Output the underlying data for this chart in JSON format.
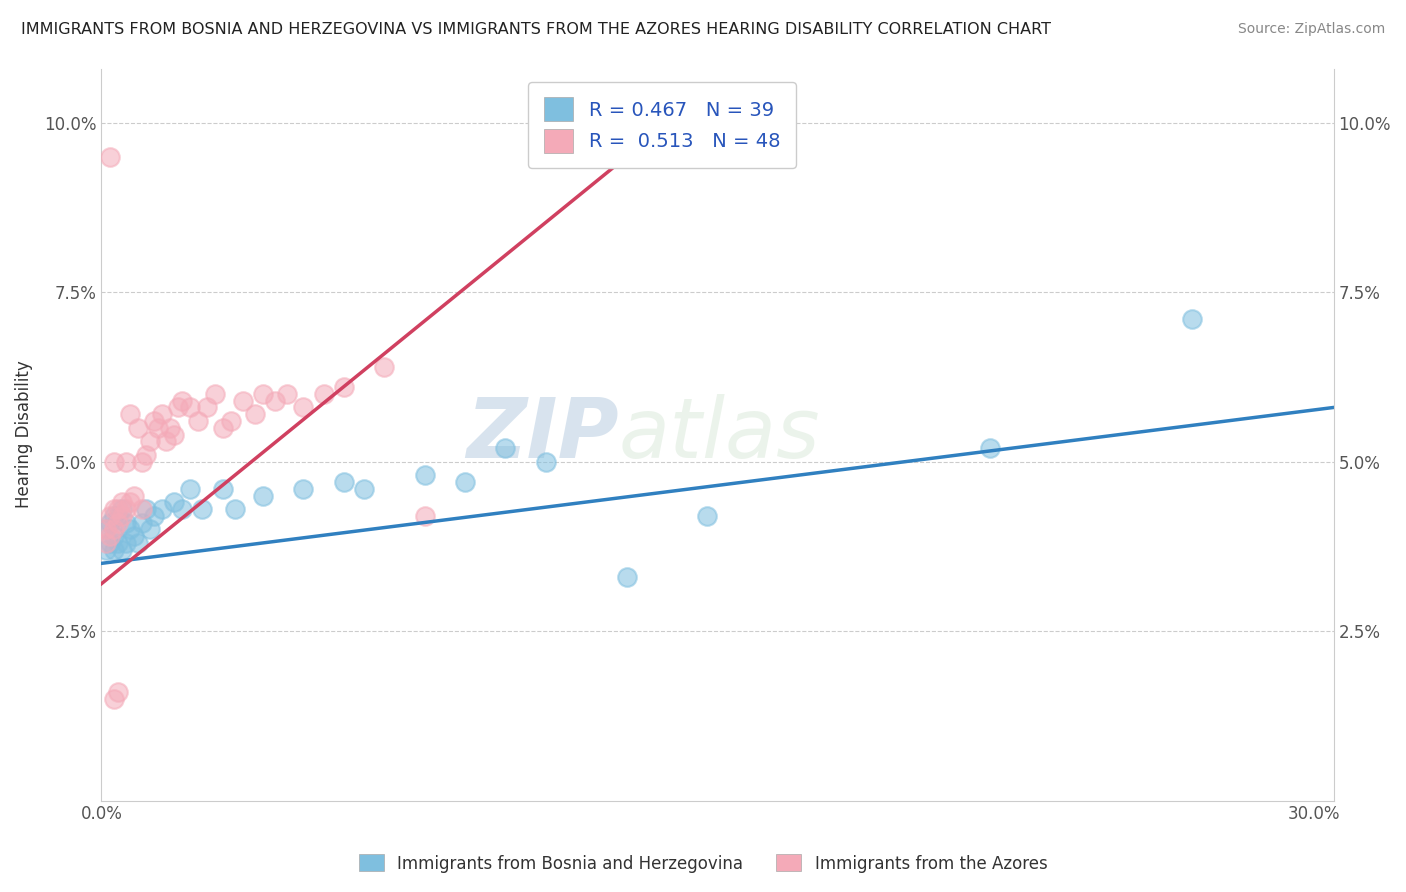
{
  "title": "IMMIGRANTS FROM BOSNIA AND HERZEGOVINA VS IMMIGRANTS FROM THE AZORES HEARING DISABILITY CORRELATION CHART",
  "source": "Source: ZipAtlas.com",
  "ylabel": "Hearing Disability",
  "x_tick_positions": [
    0.0,
    0.05,
    0.1,
    0.15,
    0.2,
    0.25,
    0.3
  ],
  "x_tick_labels": [
    "0.0%",
    "",
    "",
    "",
    "",
    "",
    "30.0%"
  ],
  "y_tick_positions": [
    0.025,
    0.05,
    0.075,
    0.1
  ],
  "y_tick_labels": [
    "2.5%",
    "5.0%",
    "7.5%",
    "10.0%"
  ],
  "xlim": [
    0.0,
    0.305
  ],
  "ylim": [
    0.0,
    0.108
  ],
  "legend_label_blue": "R = 0.467   N = 39",
  "legend_label_pink": "R =  0.513   N = 48",
  "bottom_legend_blue": "Immigrants from Bosnia and Herzegovina",
  "bottom_legend_pink": "Immigrants from the Azores",
  "blue_color": "#7fbfdf",
  "pink_color": "#f4aab8",
  "blue_line_color": "#3080c0",
  "pink_line_color": "#d04060",
  "watermark_zip": "ZIP",
  "watermark_atlas": "atlas",
  "blue_scatter_x": [
    0.001,
    0.001,
    0.002,
    0.002,
    0.003,
    0.003,
    0.003,
    0.004,
    0.004,
    0.005,
    0.005,
    0.006,
    0.006,
    0.007,
    0.008,
    0.009,
    0.01,
    0.011,
    0.012,
    0.013,
    0.015,
    0.018,
    0.02,
    0.022,
    0.025,
    0.03,
    0.033,
    0.04,
    0.05,
    0.06,
    0.065,
    0.08,
    0.09,
    0.11,
    0.15,
    0.22,
    0.27,
    0.13,
    0.1
  ],
  "blue_scatter_y": [
    0.037,
    0.04,
    0.038,
    0.041,
    0.037,
    0.039,
    0.042,
    0.038,
    0.042,
    0.037,
    0.043,
    0.038,
    0.041,
    0.04,
    0.039,
    0.038,
    0.041,
    0.043,
    0.04,
    0.042,
    0.043,
    0.044,
    0.043,
    0.046,
    0.043,
    0.046,
    0.043,
    0.045,
    0.046,
    0.047,
    0.046,
    0.048,
    0.047,
    0.05,
    0.042,
    0.052,
    0.071,
    0.033,
    0.052
  ],
  "pink_scatter_x": [
    0.001,
    0.001,
    0.002,
    0.002,
    0.003,
    0.003,
    0.003,
    0.004,
    0.004,
    0.005,
    0.005,
    0.006,
    0.006,
    0.007,
    0.007,
    0.008,
    0.009,
    0.01,
    0.011,
    0.012,
    0.013,
    0.014,
    0.015,
    0.016,
    0.017,
    0.018,
    0.019,
    0.02,
    0.022,
    0.024,
    0.026,
    0.028,
    0.03,
    0.032,
    0.035,
    0.038,
    0.04,
    0.043,
    0.046,
    0.05,
    0.055,
    0.06,
    0.07,
    0.01,
    0.003,
    0.004,
    0.08,
    0.002
  ],
  "pink_scatter_y": [
    0.038,
    0.04,
    0.039,
    0.042,
    0.04,
    0.043,
    0.05,
    0.041,
    0.043,
    0.042,
    0.044,
    0.043,
    0.05,
    0.044,
    0.057,
    0.045,
    0.055,
    0.043,
    0.051,
    0.053,
    0.056,
    0.055,
    0.057,
    0.053,
    0.055,
    0.054,
    0.058,
    0.059,
    0.058,
    0.056,
    0.058,
    0.06,
    0.055,
    0.056,
    0.059,
    0.057,
    0.06,
    0.059,
    0.06,
    0.058,
    0.06,
    0.061,
    0.064,
    0.05,
    0.015,
    0.016,
    0.042,
    0.095
  ],
  "pink_line_x": [
    0.0,
    0.13
  ],
  "pink_line_y": [
    0.032,
    0.095
  ],
  "blue_line_x": [
    0.0,
    0.305
  ],
  "blue_line_y": [
    0.035,
    0.058
  ]
}
